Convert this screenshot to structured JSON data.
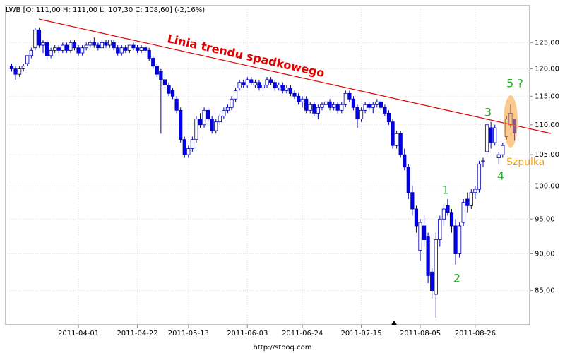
{
  "chart_data": {
    "type": "candlestick",
    "title": "LWB [O: 111,00  H: 111,00  L: 107,30  C: 108,60] (-2,16%)",
    "source": "http://stooq.com",
    "x": [
      "2011-03-09",
      "2011-03-10",
      "2011-03-11",
      "2011-03-14",
      "2011-03-15",
      "2011-03-16",
      "2011-03-17",
      "2011-03-18",
      "2011-03-21",
      "2011-03-22",
      "2011-03-23",
      "2011-03-24",
      "2011-03-25",
      "2011-03-28",
      "2011-03-29",
      "2011-03-30",
      "2011-03-31",
      "2011-04-01",
      "2011-04-04",
      "2011-04-05",
      "2011-04-06",
      "2011-04-07",
      "2011-04-08",
      "2011-04-11",
      "2011-04-12",
      "2011-04-13",
      "2011-04-14",
      "2011-04-15",
      "2011-04-18",
      "2011-04-19",
      "2011-04-20",
      "2011-04-21",
      "2011-04-22",
      "2011-04-26",
      "2011-04-27",
      "2011-04-28",
      "2011-04-29",
      "2011-05-02",
      "2011-05-04",
      "2011-05-05",
      "2011-05-06",
      "2011-05-09",
      "2011-05-10",
      "2011-05-11",
      "2011-05-12",
      "2011-05-13",
      "2011-05-16",
      "2011-05-17",
      "2011-05-18",
      "2011-05-19",
      "2011-05-20",
      "2011-05-23",
      "2011-05-24",
      "2011-05-25",
      "2011-05-26",
      "2011-05-27",
      "2011-05-30",
      "2011-05-31",
      "2011-06-01",
      "2011-06-02",
      "2011-06-03",
      "2011-06-06",
      "2011-06-07",
      "2011-06-08",
      "2011-06-09",
      "2011-06-10",
      "2011-06-13",
      "2011-06-14",
      "2011-06-15",
      "2011-06-16",
      "2011-06-17",
      "2011-06-20",
      "2011-06-21",
      "2011-06-22",
      "2011-06-24",
      "2011-06-27",
      "2011-06-28",
      "2011-06-29",
      "2011-06-30",
      "2011-07-01",
      "2011-07-04",
      "2011-07-05",
      "2011-07-06",
      "2011-07-07",
      "2011-07-08",
      "2011-07-11",
      "2011-07-12",
      "2011-07-13",
      "2011-07-14",
      "2011-07-15",
      "2011-07-18",
      "2011-07-19",
      "2011-07-20",
      "2011-07-21",
      "2011-07-22",
      "2011-07-25",
      "2011-07-26",
      "2011-07-27",
      "2011-07-28",
      "2011-07-29",
      "2011-08-01",
      "2011-08-02",
      "2011-08-03",
      "2011-08-04",
      "2011-08-05",
      "2011-08-08",
      "2011-08-09",
      "2011-08-10",
      "2011-08-11",
      "2011-08-12",
      "2011-08-16",
      "2011-08-17",
      "2011-08-18",
      "2011-08-19",
      "2011-08-22",
      "2011-08-23",
      "2011-08-24",
      "2011-08-25",
      "2011-08-26",
      "2011-08-29",
      "2011-08-30",
      "2011-08-31",
      "2011-09-01",
      "2011-09-02",
      "2011-09-05",
      "2011-09-06",
      "2011-09-07",
      "2011-09-08",
      "2011-09-09"
    ],
    "open": [
      120.5,
      120,
      119,
      120,
      121,
      122.5,
      124,
      127.5,
      124.5,
      125,
      122.5,
      123.5,
      124,
      123.5,
      124.5,
      123.5,
      125,
      124,
      123,
      124,
      124.5,
      125,
      124.5,
      124,
      125,
      124.5,
      125,
      124,
      123,
      124,
      123.5,
      124.5,
      124,
      123.5,
      124,
      123.5,
      122,
      120.5,
      119.5,
      118,
      117,
      116,
      114.5,
      112.5,
      107.5,
      105,
      106,
      107.5,
      111,
      110,
      112.5,
      111,
      109,
      110.5,
      111.5,
      112.5,
      113,
      114.5,
      116.5,
      117.5,
      117,
      118,
      117,
      117.5,
      116.5,
      117,
      118,
      117.5,
      116.5,
      117,
      116,
      116.5,
      115.5,
      115,
      114,
      114.5,
      112.5,
      113.5,
      112,
      113,
      113.5,
      114,
      113,
      113.5,
      112.5,
      113.5,
      115.5,
      114.5,
      113,
      111,
      112.5,
      113.5,
      113,
      113.5,
      114,
      113,
      112,
      110.5,
      106.5,
      108.5,
      105,
      103,
      99,
      96.5,
      90.5,
      94,
      92.5,
      87.5,
      84.5,
      92,
      95,
      97,
      96,
      94,
      90,
      94.5,
      98,
      97,
      99,
      99.5,
      104,
      105.5,
      109.5,
      107,
      104.5,
      105,
      108,
      110,
      111
    ],
    "high": [
      121,
      120.5,
      120.5,
      121,
      122.5,
      124,
      128,
      128,
      125.5,
      125.5,
      124,
      124.5,
      124.5,
      125,
      125,
      125.5,
      125.5,
      124.5,
      124.5,
      125,
      125.5,
      126,
      125,
      125.5,
      125.5,
      125.5,
      125.5,
      124.5,
      124.5,
      124.5,
      124.5,
      125,
      124.5,
      124.5,
      124.5,
      124,
      122.5,
      121,
      120,
      118.5,
      117.5,
      116.5,
      115,
      113,
      108,
      106.5,
      108,
      111.5,
      112,
      113,
      113,
      111.5,
      111,
      112,
      113,
      113.5,
      115,
      116.5,
      118,
      118,
      118.5,
      118.5,
      118,
      118,
      117.5,
      118.5,
      118.5,
      118,
      117.5,
      117.5,
      117,
      117,
      116,
      115.5,
      115,
      115,
      114,
      114,
      113.5,
      114,
      114.5,
      114.5,
      114,
      114,
      114,
      116,
      116,
      115,
      113.5,
      113,
      114,
      114,
      114,
      114.5,
      114.5,
      113.5,
      112.5,
      111,
      109,
      109,
      106,
      103.5,
      100,
      97,
      95,
      95.5,
      93,
      88,
      93,
      95.5,
      97,
      98,
      96.5,
      95,
      94.5,
      98,
      99,
      99.5,
      100,
      104,
      104.5,
      111,
      110.5,
      110,
      105.5,
      107,
      111.5,
      113.5,
      111
    ],
    "low": [
      119.5,
      118,
      118.5,
      119.5,
      120.5,
      122,
      123.5,
      124,
      123,
      121.5,
      122,
      123,
      123,
      123,
      123,
      123,
      123.5,
      122.5,
      122.5,
      123.5,
      124,
      124,
      123.5,
      124,
      124,
      124,
      123.5,
      122.5,
      122.5,
      123,
      123,
      123.5,
      123,
      123,
      123,
      121.5,
      120,
      118.5,
      108.5,
      116.5,
      115,
      114.5,
      112,
      107,
      104.5,
      104.5,
      105.5,
      107,
      109.5,
      109.5,
      110.5,
      108.5,
      108.5,
      110,
      111,
      112,
      112.5,
      114,
      116,
      116.5,
      116.5,
      117,
      116.5,
      116,
      116,
      116.5,
      117,
      116,
      116,
      115.5,
      115.5,
      115,
      114.5,
      113.5,
      113,
      112,
      112,
      111.5,
      111,
      112.5,
      113,
      112.5,
      112.5,
      112,
      112,
      113,
      114,
      112.5,
      109.5,
      110.5,
      112,
      112.5,
      112,
      113,
      112.5,
      111.5,
      110,
      106,
      106,
      104.5,
      102.5,
      98,
      95.5,
      93,
      89,
      91,
      86,
      84,
      81.5,
      91,
      94,
      95.5,
      93,
      88.5,
      89.5,
      94,
      96,
      96.5,
      98,
      99,
      103,
      105,
      106,
      106.5,
      103.5,
      104.5,
      107.5,
      109.5,
      107.3
    ],
    "close": [
      120,
      119,
      120,
      120.5,
      122.5,
      123.5,
      127.5,
      124.5,
      125,
      122.5,
      123.5,
      124,
      123.5,
      124.5,
      123.5,
      125,
      124,
      123,
      124,
      124.5,
      125,
      124.5,
      124,
      125,
      124.5,
      125.5,
      124,
      123,
      124,
      123.5,
      124.5,
      124,
      123.5,
      124,
      123.5,
      122,
      120.5,
      119,
      118,
      117,
      115.5,
      115,
      112.5,
      107.5,
      105,
      106,
      107.5,
      111,
      110,
      112.5,
      111,
      109,
      110.5,
      111.5,
      112.5,
      113,
      114.5,
      116,
      117.5,
      117,
      118,
      117.5,
      117.5,
      116.5,
      117,
      118,
      117.5,
      116.5,
      117,
      116,
      116.5,
      115.5,
      115,
      114,
      114.5,
      112.5,
      113.5,
      112,
      113,
      113.5,
      114,
      113,
      113.5,
      112.5,
      113.5,
      115.5,
      114.5,
      113,
      111,
      112.5,
      113.5,
      113,
      113.5,
      114,
      113,
      112,
      110.5,
      106.5,
      108.5,
      105,
      103,
      99,
      96.5,
      94,
      94.5,
      92,
      87,
      85,
      92,
      95,
      96.5,
      96,
      94,
      90,
      94,
      97.5,
      97,
      99,
      99.5,
      103.5,
      104,
      110,
      107,
      109.5,
      105,
      106.5,
      111,
      112,
      108.6
    ],
    "up_color": "#ffffff",
    "down_color": "#0000ee",
    "ylim": [
      80.6,
      132.4
    ],
    "log": true,
    "yticks": [
      {
        "value": 85,
        "label": "85,00"
      },
      {
        "value": 90,
        "label": "90,00"
      },
      {
        "value": 95,
        "label": "95,00"
      },
      {
        "value": 100,
        "label": "100,00"
      },
      {
        "value": 105,
        "label": "105,00"
      },
      {
        "value": 110,
        "label": "110,00"
      },
      {
        "value": 115,
        "label": "115,00"
      },
      {
        "value": 120,
        "label": "120,00"
      },
      {
        "value": 125,
        "label": "125,00"
      }
    ],
    "xticks": [
      "2011-04-01",
      "2011-04-22",
      "2011-05-13",
      "2011-06-03",
      "2011-06-24",
      "2011-07-15",
      "2011-08-05",
      "2011-08-26"
    ],
    "grid": true,
    "annotations": [
      "Linia trendu spadkowego",
      "1",
      "2",
      "3",
      "4",
      "5 ?",
      "Szpulka"
    ]
  }
}
